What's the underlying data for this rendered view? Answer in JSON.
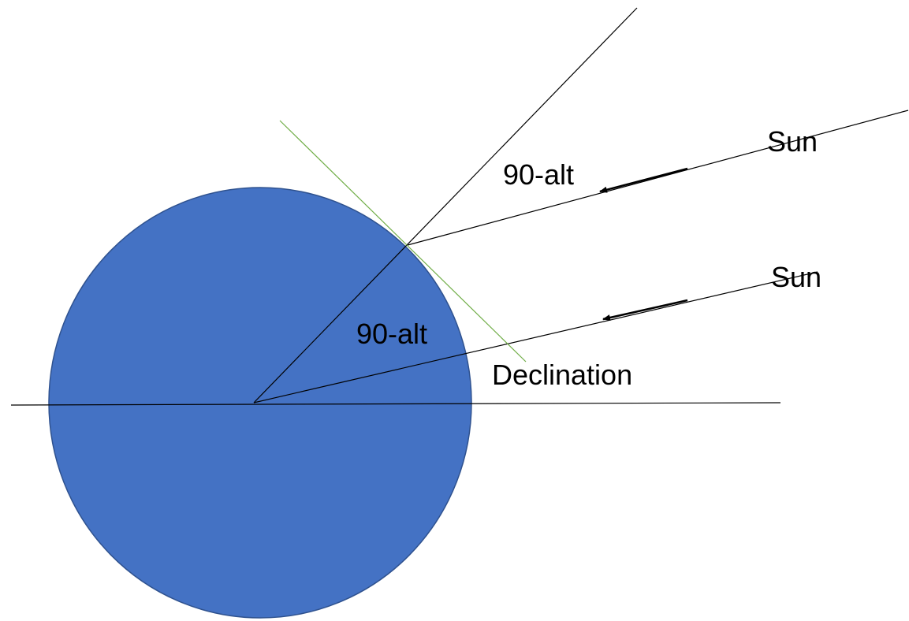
{
  "labels": {
    "sun_upper": "Sun",
    "sun_lower": "Sun",
    "angle_upper": "90-alt",
    "angle_lower": "90-alt",
    "declination": "Declination"
  },
  "colors": {
    "earth_fill": "#4472C4",
    "earth_stroke": "#2F528F",
    "tangent_line": "#70AD47",
    "lines": "#000000"
  }
}
